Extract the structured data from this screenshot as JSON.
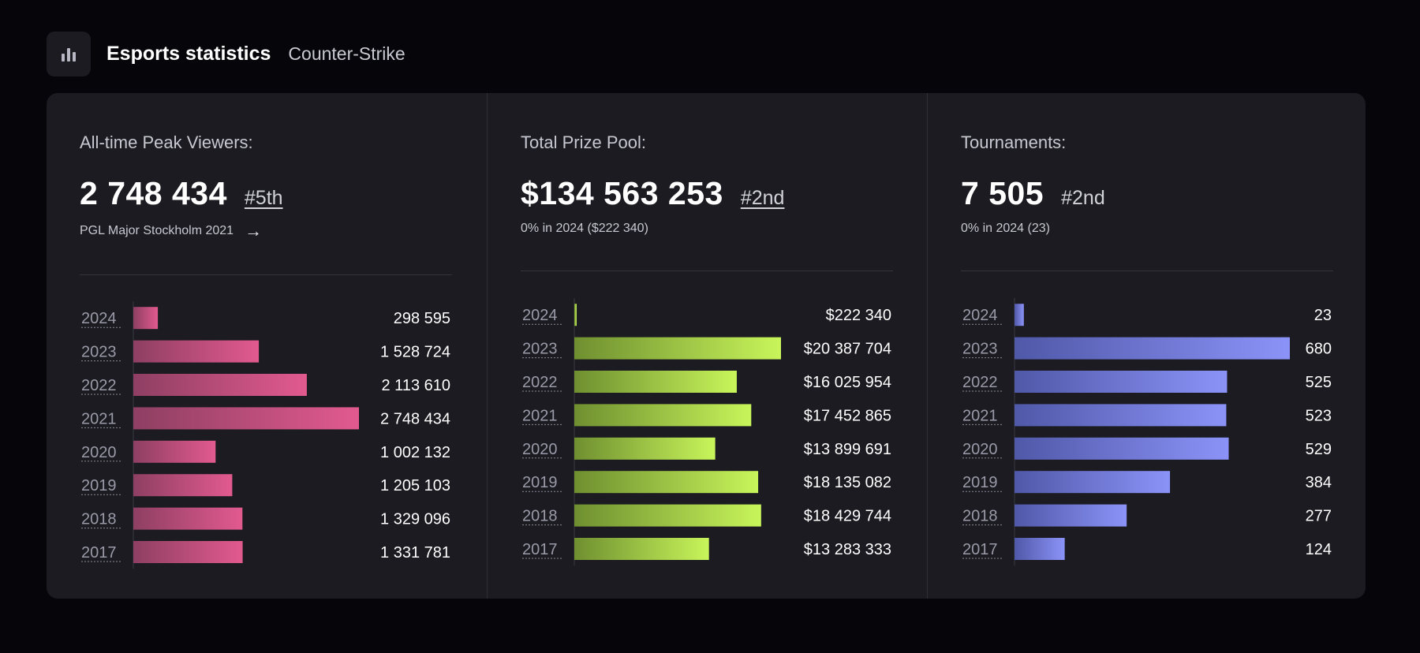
{
  "header": {
    "title": "Esports statistics",
    "subtitle": "Counter-Strike",
    "icon": "bar-chart-icon"
  },
  "colors": {
    "viewers_start": "#8e3f63",
    "viewers_end": "#e25a8f",
    "prize_start": "#6f8f30",
    "prize_end": "#c8f55a",
    "tournaments_start": "#5058a8",
    "tournaments_end": "#8b93f8"
  },
  "panels": [
    {
      "key": "viewers",
      "label": "All-time Peak Viewers:",
      "value": "2 748 434",
      "rank": "#5th",
      "sub": "PGL Major Stockholm 2021"
    },
    {
      "key": "prize",
      "label": "Total Prize Pool:",
      "value": "$134 563 253",
      "rank": "#2nd",
      "sub": "0% in 2024 ($222 340)"
    },
    {
      "key": "tournaments",
      "label": "Tournaments:",
      "value": "7 505",
      "rank": "#2nd",
      "sub": "0% in 2024 (23)"
    }
  ],
  "chart_data": [
    {
      "type": "bar",
      "orientation": "horizontal",
      "title": "All-time Peak Viewers",
      "categories": [
        "2024",
        "2023",
        "2022",
        "2021",
        "2020",
        "2019",
        "2018",
        "2017"
      ],
      "values": [
        298595,
        1528724,
        2113610,
        2748434,
        1002132,
        1205103,
        1329096,
        1331781
      ],
      "labels": [
        "298 595",
        "1 528 724",
        "2 113 610",
        "2 748 434",
        "1 002 132",
        "1 205 103",
        "1 329 096",
        "1 331 781"
      ],
      "xlim": [
        0,
        2748434
      ]
    },
    {
      "type": "bar",
      "orientation": "horizontal",
      "title": "Total Prize Pool",
      "categories": [
        "2024",
        "2023",
        "2022",
        "2021",
        "2020",
        "2019",
        "2018",
        "2017"
      ],
      "values": [
        222340,
        20387704,
        16025954,
        17452865,
        13899691,
        18135082,
        18429744,
        13283333
      ],
      "labels": [
        "$222 340",
        "$20 387 704",
        "$16 025 954",
        "$17 452 865",
        "$13 899 691",
        "$18 135 082",
        "$18 429 744",
        "$13 283 333"
      ],
      "xlim": [
        0,
        20387704
      ]
    },
    {
      "type": "bar",
      "orientation": "horizontal",
      "title": "Tournaments",
      "categories": [
        "2024",
        "2023",
        "2022",
        "2021",
        "2020",
        "2019",
        "2018",
        "2017"
      ],
      "values": [
        23,
        680,
        525,
        523,
        529,
        384,
        277,
        124
      ],
      "labels": [
        "23",
        "680",
        "525",
        "523",
        "529",
        "384",
        "277",
        "124"
      ],
      "xlim": [
        0,
        680
      ]
    }
  ]
}
